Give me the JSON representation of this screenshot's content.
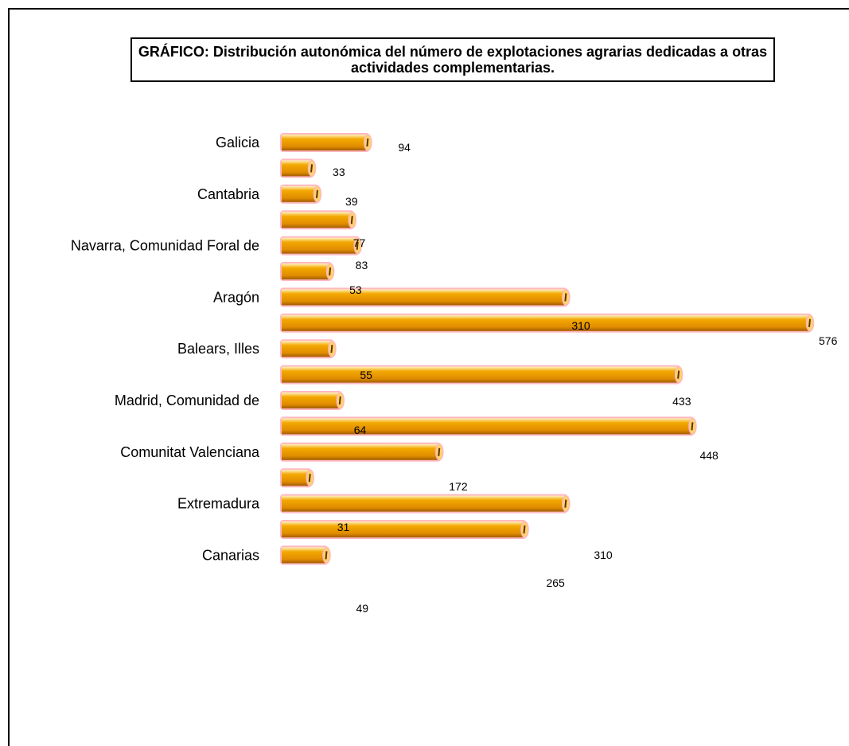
{
  "chart_data": {
    "type": "bar",
    "orientation": "horizontal",
    "title": "GRÁFICO: Distribución autonómica del número de explotaciones agrarias dedicadas a otras actividades complementarias.",
    "categories": [
      "Galicia",
      "",
      "Cantabria",
      "",
      "Navarra, Comunidad Foral de",
      "",
      "Aragón",
      "",
      "Balears, Illes",
      "",
      "Madrid, Comunidad de",
      "",
      "Comunitat Valenciana",
      "",
      "Extremadura",
      "",
      "Canarias"
    ],
    "values": [
      94,
      33,
      39,
      77,
      83,
      53,
      310,
      576,
      55,
      433,
      64,
      448,
      172,
      31,
      310,
      265,
      49
    ],
    "value_labels": [
      "94",
      "33",
      "39",
      "77",
      "83",
      "53",
      "310",
      "576",
      "55",
      "433",
      "64",
      "448",
      "172",
      "31",
      "310",
      "265",
      "49"
    ],
    "xlim": [
      0,
      576
    ],
    "grid": false,
    "legend": "none",
    "bar_color": "#f0a000",
    "bar_shadow_color": "#b86e00",
    "bar_outline_color": "#ffb8c0"
  }
}
